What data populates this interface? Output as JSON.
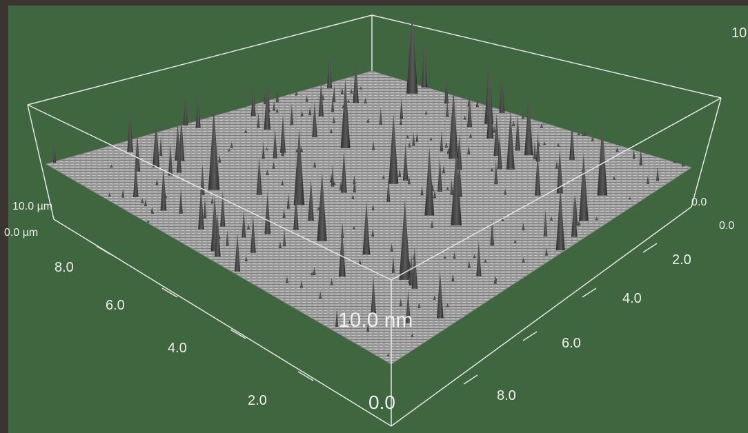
{
  "scale_bar_text": "10.0 nm",
  "corner_label_top_right": "10",
  "left_axis": {
    "label_max": "10.0 µm",
    "label_zero": "0.0 µm",
    "ticks": [
      "8.0",
      "6.0",
      "4.0",
      "2.0"
    ]
  },
  "right_axis": {
    "label_zero_upper": "0.0",
    "label_zero": "0.0",
    "ticks": [
      "2.0",
      "4.0",
      "6.0",
      "8.0"
    ]
  },
  "origin_label": "0.0",
  "colors": {
    "background": "#40663f",
    "frame": "#3b3430",
    "surface": "#9a9a9a",
    "spike": "#3a3a3a",
    "box_lines": "#e6e6e6"
  }
}
